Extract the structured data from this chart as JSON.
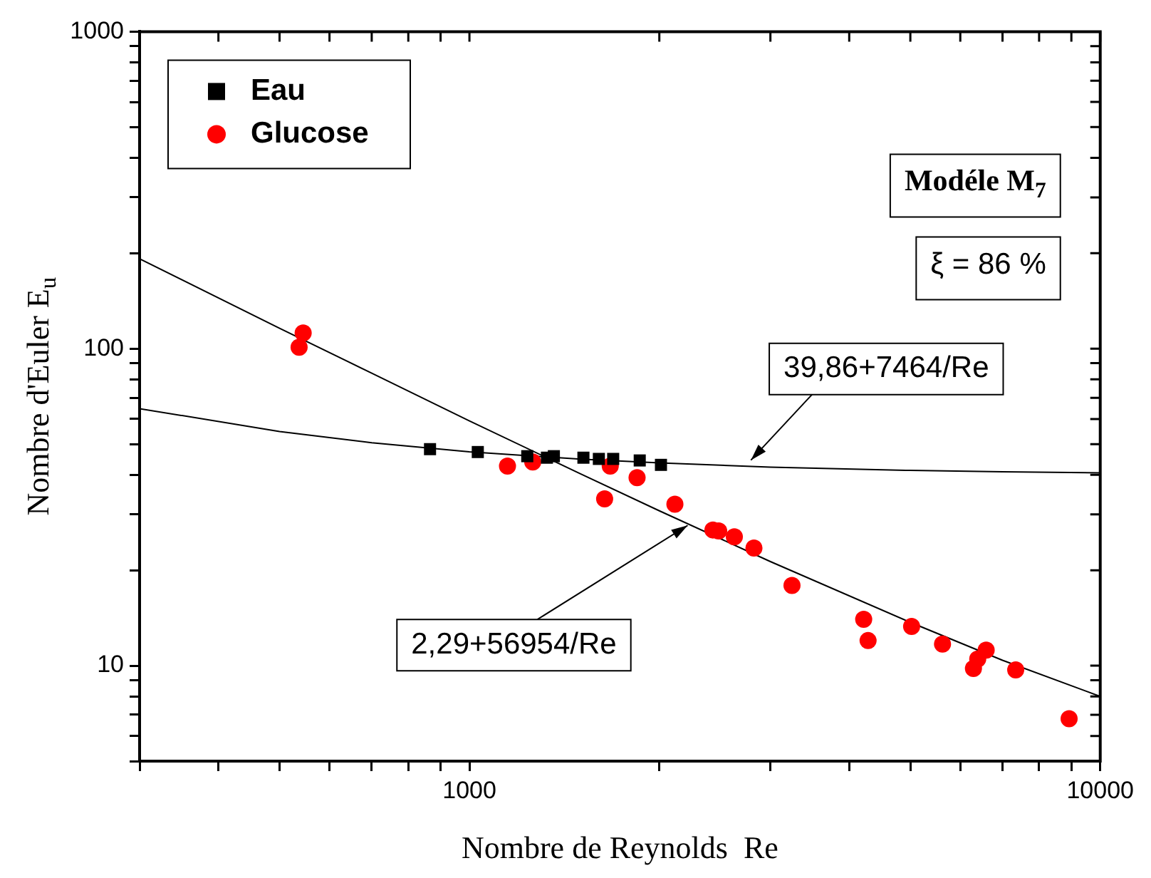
{
  "chart_data": {
    "type": "scatter",
    "xlabel": "Nombre de Reynolds  Re",
    "ylabel": "Nombre d'Euler E$_{u}$",
    "log": "xy",
    "grid": false,
    "legend": "top left",
    "xlim": [
      300,
      10000
    ],
    "xticks": [
      {
        "value": 300,
        "label": null
      },
      {
        "value": 400,
        "label": null
      },
      {
        "value": 500,
        "label": null
      },
      {
        "value": 600,
        "label": null
      },
      {
        "value": 700,
        "label": null
      },
      {
        "value": 800,
        "label": null
      },
      {
        "value": 900,
        "label": null
      },
      1000,
      {
        "value": 2000,
        "label": null
      },
      {
        "value": 3000,
        "label": null
      },
      {
        "value": 4000,
        "label": null
      },
      {
        "value": 5000,
        "label": null
      },
      {
        "value": 6000,
        "label": null
      },
      {
        "value": 7000,
        "label": null
      },
      {
        "value": 8000,
        "label": null
      },
      {
        "value": 9000,
        "label": null
      },
      10000
    ],
    "ylim": [
      5,
      1000
    ],
    "yticks": [
      {
        "value": 5,
        "label": null
      },
      {
        "value": 6,
        "label": null
      },
      {
        "value": 7,
        "label": null
      },
      {
        "value": 8,
        "label": null
      },
      {
        "value": 9,
        "label": null
      },
      10,
      {
        "value": 20,
        "label": null
      },
      {
        "value": 30,
        "label": null
      },
      {
        "value": 40,
        "label": null
      },
      {
        "value": 50,
        "label": null
      },
      {
        "value": 60,
        "label": null
      },
      {
        "value": 70,
        "label": null
      },
      {
        "value": 80,
        "label": null
      },
      {
        "value": 90,
        "label": null
      },
      100,
      {
        "value": 200,
        "label": null
      },
      {
        "value": 300,
        "label": null
      },
      {
        "value": 400,
        "label": null
      },
      {
        "value": 500,
        "label": null
      },
      {
        "value": 600,
        "label": null
      },
      {
        "value": 700,
        "label": null
      },
      {
        "value": 800,
        "label": null
      },
      {
        "value": 900,
        "label": null
      },
      1000
    ],
    "series": [
      {
        "type": "line",
        "color": "#000000",
        "marker": "none",
        "line_style": "solid",
        "x": [
          300,
          500,
          700,
          1000,
          1500,
          2000,
          3000,
          5000,
          7000,
          10000
        ],
        "values": [
          64.7,
          54.8,
          50.5,
          47.3,
          44.8,
          43.6,
          42.3,
          41.3,
          40.9,
          40.6
        ]
      },
      {
        "type": "line",
        "color": "#000000",
        "marker": "none",
        "line_style": "solid",
        "x": [
          300,
          500,
          700,
          1000,
          1500,
          2000,
          3000,
          5000,
          7000,
          10000
        ],
        "values": [
          192,
          116,
          83.7,
          59.2,
          40.3,
          30.8,
          21.3,
          13.7,
          10.4,
          8.0
        ]
      },
      {
        "name": "Eau",
        "marker": "square",
        "color": "#000000",
        "x": [
          866,
          1031,
          1235,
          1327,
          1361,
          1516,
          1604,
          1690,
          1862,
          2012
        ],
        "values": [
          48.2,
          47.2,
          45.8,
          45.3,
          45.8,
          45.3,
          44.9,
          44.9,
          44.4,
          43.0
        ]
      },
      {
        "name": "Glucose",
        "marker": "circle",
        "color": "#ff0000",
        "x": [
          537,
          545,
          1149,
          1260,
          1638,
          1672,
          1844,
          2117,
          2432,
          2484,
          2630,
          2825,
          3246,
          4217,
          4285,
          5023,
          5623,
          6295,
          6394,
          6594,
          7345,
          8926
        ],
        "values": [
          101,
          112,
          42.6,
          43.9,
          33.6,
          42.6,
          39.2,
          32.3,
          26.8,
          26.6,
          25.5,
          23.5,
          17.9,
          14.0,
          12.0,
          13.3,
          11.7,
          9.8,
          10.5,
          11.2,
          9.7,
          6.8
        ]
      }
    ],
    "annotations": [
      "Modéle M$_{7}$",
      "ξ = 86 %",
      {
        "text": "39,86+7464/Re",
        "x": 2794,
        "y": 44.5
      },
      {
        "text": "2,29+56954/Re",
        "x": 2218,
        "y": 27.7
      }
    ]
  }
}
